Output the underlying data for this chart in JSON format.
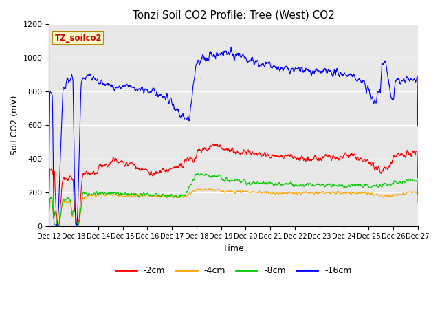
{
  "title": "Tonzi Soil CO2 Profile: Tree (West) CO2",
  "xlabel": "Time",
  "ylabel": "Soil CO2 (mV)",
  "ylim": [
    0,
    1200
  ],
  "yticks": [
    0,
    200,
    400,
    600,
    800,
    1000,
    1200
  ],
  "xtick_labels": [
    "Dec 12",
    "Dec 13",
    "Dec 14",
    "Dec 15",
    "Dec 16",
    "Dec 17",
    "Dec 18",
    "Dec 19",
    "Dec 20",
    "Dec 21",
    "Dec 22",
    "Dec 23",
    "Dec 24",
    "Dec 25",
    "Dec 26",
    "Dec 27"
  ],
  "legend_label": "TZ_soilco2",
  "series_labels": [
    "-2cm",
    "-4cm",
    "-8cm",
    "-16cm"
  ],
  "series_colors": [
    "#ff0000",
    "#ffa500",
    "#00cc00",
    "#0000ff"
  ],
  "background_color": "#ffffff",
  "plot_bg_color": "#e8e8e8",
  "grid_color": "#ffffff",
  "title_fontsize": 11,
  "axis_fontsize": 9,
  "tick_fontsize": 8,
  "legend_fontsize": 9
}
